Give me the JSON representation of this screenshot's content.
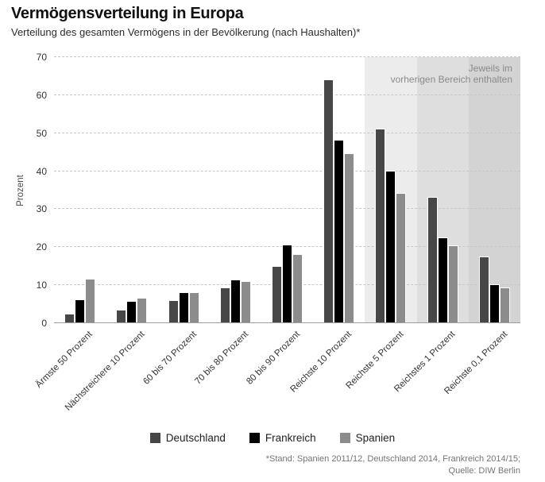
{
  "header": {
    "title": "Vermögensverteilung in Europa",
    "subtitle": "Verteilung des gesamten Vermögens in der Bevölkerung (nach Haushalten)*"
  },
  "chart_data": {
    "type": "bar",
    "title": "Vermögensverteilung in Europa",
    "subtitle": "Verteilung des gesamten Vermögens in der Bevölkerung (nach Haushalten)*",
    "xlabel": "",
    "ylabel": "Prozent",
    "ylim": [
      0,
      70
    ],
    "yticks": [
      0,
      10,
      20,
      30,
      40,
      50,
      60,
      70
    ],
    "grid": "horizontal-dashed",
    "legend_position": "bottom",
    "categories": [
      "Ärmste 50 Prozent",
      "Nächstreichere 10 Prozent",
      "60 bis 70 Prozent",
      "70 bis 80 Prozent",
      "80 bis 90 Prozent",
      "Reichste 10 Prozent",
      "Reichste 5 Prozent",
      "Reichstes 1 Prozent",
      "Reichste 0,1 Prozent"
    ],
    "series": [
      {
        "name": "Deutschland",
        "color": "#474747",
        "values": [
          2.3,
          3.4,
          5.8,
          9.3,
          14.9,
          63.9,
          51.0,
          33.0,
          17.4
        ]
      },
      {
        "name": "Frankreich",
        "color": "#000000",
        "values": [
          6.0,
          5.6,
          8.0,
          11.2,
          20.5,
          48.0,
          40.0,
          22.3,
          10.0
        ]
      },
      {
        "name": "Spanien",
        "color": "#8c8c8c",
        "values": [
          11.6,
          6.4,
          8.0,
          10.8,
          18.0,
          44.5,
          34.0,
          20.2,
          9.3
        ]
      }
    ],
    "highlight_bands": {
      "start_category_index": 6,
      "colors": [
        "#ececec",
        "#dedede",
        "#d3d3d3"
      ],
      "label_lines": [
        "Jeweils im",
        "vorherigen Bereich enthalten"
      ]
    }
  },
  "footer": {
    "note_line1": "*Stand: Spanien 2011/12, Deutschland 2014, Frankreich 2014/15;",
    "note_line2": "Quelle: DIW Berlin"
  }
}
